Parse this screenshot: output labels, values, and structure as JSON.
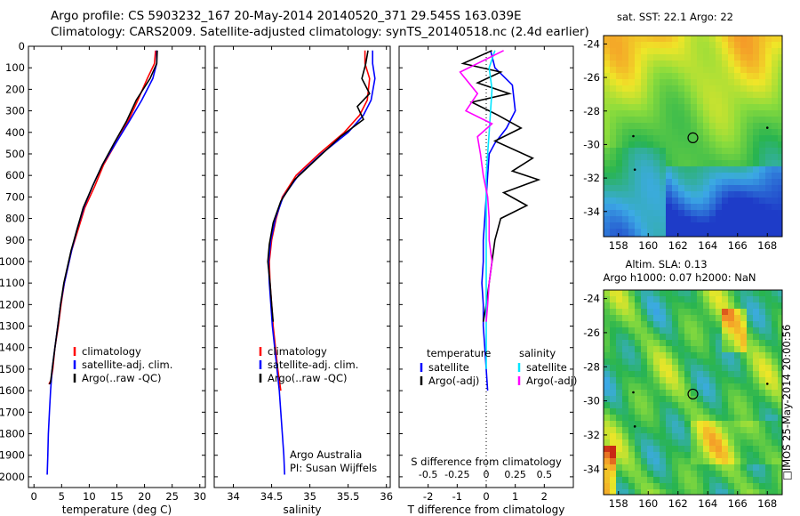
{
  "header": {
    "line1": "Argo profile: CS 5903232_167 20-May-2014 20140520_371 29.545S 163.039E",
    "line2": "Climatology: CARS2009. Satellite-adjusted climatology: synTS_20140518.nc (2.4d earlier)"
  },
  "side_stamp": "□IMOS 25-May-2014 20:00:56",
  "colors": {
    "climatology": "#ff0000",
    "satellite": "#0000ff",
    "argo": "#000000",
    "sat_salinity": "#00e5ff",
    "argo_adj_salinity": "#ff00ff"
  },
  "chart_data": [
    {
      "type": "line",
      "panel": "temperature",
      "xlabel": "temperature (deg C)",
      "ylabel": "",
      "xlim": [
        -1,
        31
      ],
      "ylim": [
        2050,
        0
      ],
      "xticks": [
        "0",
        "5",
        "10",
        "15",
        "20",
        "25",
        "30"
      ],
      "yticks": [
        "0",
        "100",
        "200",
        "300",
        "400",
        "500",
        "600",
        "700",
        "800",
        "900",
        "1000",
        "1100",
        "1200",
        "1300",
        "1400",
        "1500",
        "1600",
        "1700",
        "1800",
        "1900",
        "2000"
      ],
      "legend": [
        "climatology",
        "satellite-adj. clim.",
        "Argo(..raw -QC)"
      ],
      "series": [
        {
          "name": "climatology",
          "x": [
            22.0,
            21.8,
            20.5,
            18.8,
            17.0,
            14.8,
            12.6,
            11.0,
            9.2,
            8.0,
            6.8,
            5.5,
            4.9,
            4.4,
            3.8,
            3.4,
            3.1,
            2.9,
            2.7
          ],
          "y": [
            20,
            80,
            150,
            250,
            350,
            450,
            550,
            650,
            750,
            850,
            950,
            1100,
            1200,
            1300,
            1400,
            1500,
            1550,
            1560,
            1570
          ]
        },
        {
          "name": "satellite-adj. clim.",
          "x": [
            22.2,
            22.2,
            21.5,
            19.5,
            17.2,
            14.8,
            12.4,
            10.6,
            9.0,
            7.8,
            6.8,
            5.5,
            4.8,
            4.3,
            3.8,
            3.3,
            3.0,
            2.8,
            2.6,
            2.5,
            2.4
          ],
          "y": [
            20,
            80,
            150,
            250,
            350,
            450,
            550,
            650,
            750,
            850,
            950,
            1100,
            1200,
            1300,
            1400,
            1500,
            1600,
            1700,
            1800,
            1900,
            1990
          ]
        },
        {
          "name": "Argo(..raw -QC)",
          "x": [
            22.3,
            22.2,
            21.0,
            18.5,
            16.7,
            14.5,
            12.4,
            10.6,
            8.9,
            7.8,
            6.7,
            5.4,
            4.8,
            4.3,
            3.8,
            3.3,
            3.0,
            2.8
          ],
          "y": [
            20,
            80,
            150,
            250,
            350,
            450,
            550,
            650,
            750,
            850,
            950,
            1100,
            1200,
            1300,
            1400,
            1500,
            1560,
            1570
          ]
        }
      ]
    },
    {
      "type": "line",
      "panel": "salinity",
      "xlabel": "salinity",
      "xlim": [
        33.75,
        36.05
      ],
      "ylim": [
        2050,
        0
      ],
      "xticks": [
        "34",
        "34.5",
        "35",
        "35.5",
        "36"
      ],
      "legend": [
        "climatology",
        "satellite-adj. clim.",
        "Argo(..raw -QC)"
      ],
      "annotation": [
        "Argo Australia",
        "PI: Susan Wijffels"
      ],
      "series": [
        {
          "name": "climatology",
          "x": [
            35.72,
            35.72,
            35.78,
            35.75,
            35.65,
            35.45,
            35.12,
            34.82,
            34.64,
            34.56,
            34.5,
            34.47,
            34.48,
            34.5,
            34.52,
            34.55,
            34.58,
            34.6,
            34.62
          ],
          "y": [
            20,
            80,
            150,
            250,
            320,
            400,
            500,
            600,
            700,
            800,
            900,
            1000,
            1100,
            1200,
            1300,
            1400,
            1500,
            1550,
            1600
          ]
        },
        {
          "name": "satellite-adj. clim.",
          "x": [
            35.82,
            35.82,
            35.85,
            35.8,
            35.7,
            35.5,
            35.15,
            34.85,
            34.65,
            34.55,
            34.49,
            34.46,
            34.47,
            34.49,
            34.51,
            34.54,
            34.57,
            34.6,
            34.62,
            34.64,
            34.66,
            34.67
          ],
          "y": [
            20,
            80,
            150,
            250,
            320,
            400,
            500,
            600,
            700,
            800,
            900,
            1000,
            1100,
            1200,
            1300,
            1400,
            1500,
            1600,
            1700,
            1800,
            1900,
            1990
          ]
        },
        {
          "name": "Argo(..raw -QC)",
          "x": [
            35.76,
            35.73,
            35.68,
            35.78,
            35.62,
            35.7,
            35.4,
            35.1,
            34.8,
            34.62,
            34.52,
            34.47,
            34.45,
            34.48,
            34.5,
            34.52
          ],
          "y": [
            20,
            80,
            150,
            220,
            280,
            340,
            420,
            520,
            620,
            720,
            820,
            920,
            1000,
            1100,
            1200,
            1280
          ]
        }
      ]
    },
    {
      "type": "line",
      "panel": "differences",
      "xlabel": "T difference from climatology",
      "xlabel_top": "S difference from climatology",
      "xlim": [
        -3,
        3
      ],
      "ylim": [
        2050,
        0
      ],
      "xticks": [
        "-2",
        "-1",
        "0",
        "1",
        "2"
      ],
      "xticks_salinity": [
        "-0.5",
        "-0.25",
        "0",
        "0.25",
        "0.5"
      ],
      "legend_groups": [
        {
          "heading": "temperature",
          "items": [
            "satellite",
            "Argo(-adj)"
          ]
        },
        {
          "heading": "salinity",
          "items": [
            "satellite",
            "Argo(-adj)"
          ]
        }
      ],
      "series": [
        {
          "name": "temperature satellite",
          "x": [
            0.15,
            0.3,
            0.9,
            1.0,
            0.7,
            0.3,
            0.1,
            0.05,
            0.0,
            -0.05,
            -0.1,
            -0.1,
            -0.15,
            -0.1,
            -0.1,
            -0.05,
            0.0,
            0.05
          ],
          "y": [
            20,
            100,
            180,
            300,
            380,
            450,
            500,
            600,
            700,
            800,
            900,
            1000,
            1100,
            1200,
            1300,
            1400,
            1500,
            1600
          ]
        },
        {
          "name": "temperature Argo(-adj)",
          "x": [
            0.2,
            -0.8,
            0.5,
            -0.3,
            0.8,
            -0.5,
            0.4,
            1.2,
            0.3,
            1.6,
            0.9,
            1.8,
            0.6,
            1.4,
            0.5,
            0.3,
            0.2,
            0.1,
            0.0,
            -0.1
          ],
          "y": [
            20,
            80,
            120,
            170,
            220,
            260,
            320,
            380,
            440,
            520,
            580,
            620,
            680,
            740,
            800,
            900,
            1000,
            1100,
            1200,
            1280
          ]
        },
        {
          "name": "salinity satellite",
          "x": [
            0.3,
            0.1,
            0.2,
            0.15,
            0.1,
            0.05,
            0.0,
            0.0,
            0.0,
            0.0,
            0.0,
            0.0,
            0.0,
            0.0,
            0.0
          ],
          "y": [
            20,
            100,
            200,
            300,
            400,
            500,
            600,
            700,
            800,
            900,
            1000,
            1100,
            1200,
            1300,
            1500
          ]
        },
        {
          "name": "salinity Argo(-adj)",
          "x": [
            0.6,
            -0.9,
            -0.3,
            -0.7,
            0.2,
            -0.3,
            -0.2,
            -0.1,
            0.05,
            0.1,
            0.1,
            0.2,
            0.1,
            0.05,
            0.0
          ],
          "y": [
            20,
            120,
            220,
            300,
            360,
            420,
            500,
            600,
            700,
            800,
            900,
            1000,
            1100,
            1200,
            1280
          ]
        }
      ]
    },
    {
      "type": "heatmap",
      "panel": "sat-sst-map",
      "title": "sat. SST: 22.1  Argo: 22",
      "xticks": [
        "158",
        "160",
        "162",
        "164",
        "166",
        "168"
      ],
      "yticks": [
        "-24",
        "-26",
        "-28",
        "-30",
        "-32",
        "-34"
      ],
      "xlim": [
        157,
        169
      ],
      "ylim": [
        -35.5,
        -23.5
      ],
      "marker": {
        "lon": 163.0,
        "lat": -29.6
      }
    },
    {
      "type": "heatmap",
      "panel": "altim-sla-map",
      "title_line1": "Altim. SLA: 0.13",
      "title_line2": "Argo h1000: 0.07 h2000: NaN",
      "xticks": [
        "158",
        "160",
        "162",
        "164",
        "166",
        "168"
      ],
      "yticks": [
        "-24",
        "-26",
        "-28",
        "-30",
        "-32",
        "-34"
      ],
      "xlim": [
        157,
        169
      ],
      "ylim": [
        -35.5,
        -23.5
      ],
      "marker": {
        "lon": 163.0,
        "lat": -29.6
      }
    }
  ]
}
